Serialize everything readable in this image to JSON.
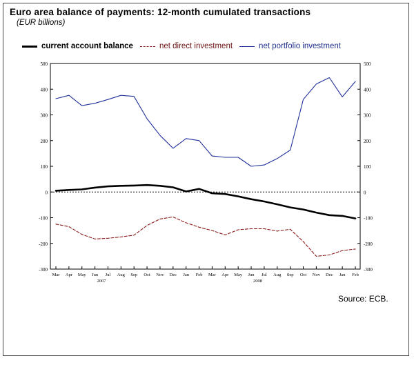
{
  "chart_data": {
    "type": "line",
    "title": "Euro area balance of payments: 12-month cumulated transactions",
    "subtitle": "(EUR billions)",
    "xlabel": "",
    "ylabel": "",
    "ylim": [
      -300,
      500
    ],
    "yticks": [
      -300,
      -200,
      -100,
      0,
      100,
      200,
      300,
      400,
      500
    ],
    "grid": false,
    "legend_position": "top",
    "categories": [
      "Mar",
      "Apr",
      "May",
      "Jun",
      "Jul",
      "Aug",
      "Sep",
      "Oct",
      "Nov",
      "Dec",
      "Jan",
      "Feb",
      "Mar",
      "Apr",
      "May",
      "Jun",
      "Jul",
      "Aug",
      "Sep",
      "Oct",
      "Nov",
      "Dec",
      "Jan",
      "Feb"
    ],
    "year_labels": [
      {
        "label": "2007",
        "after_index": 3
      },
      {
        "label": "2008",
        "after_index": 15
      }
    ],
    "series": [
      {
        "name": "current account balance",
        "style": "solid-thick",
        "color": "#000000",
        "values": [
          5,
          8,
          10,
          17,
          22,
          24,
          25,
          27,
          24,
          18,
          2,
          12,
          -5,
          -8,
          -17,
          -28,
          -37,
          -48,
          -60,
          -68,
          -80,
          -90,
          -93,
          -103
        ]
      },
      {
        "name": "net direct investment",
        "style": "dashed",
        "color": "#8b1a1a",
        "values": [
          -125,
          -135,
          -165,
          -183,
          -180,
          -175,
          -168,
          -130,
          -105,
          -97,
          -120,
          -137,
          -150,
          -167,
          -147,
          -143,
          -143,
          -152,
          -145,
          -193,
          -250,
          -245,
          -228,
          -222
        ]
      },
      {
        "name": "net portfolio investment",
        "style": "solid",
        "color": "#1f2f9a",
        "values": [
          363,
          376,
          336,
          345,
          360,
          376,
          372,
          285,
          220,
          170,
          208,
          200,
          140,
          135,
          135,
          100,
          105,
          130,
          163,
          360,
          420,
          445,
          370,
          430
        ]
      }
    ]
  },
  "source": "Source: ECB."
}
